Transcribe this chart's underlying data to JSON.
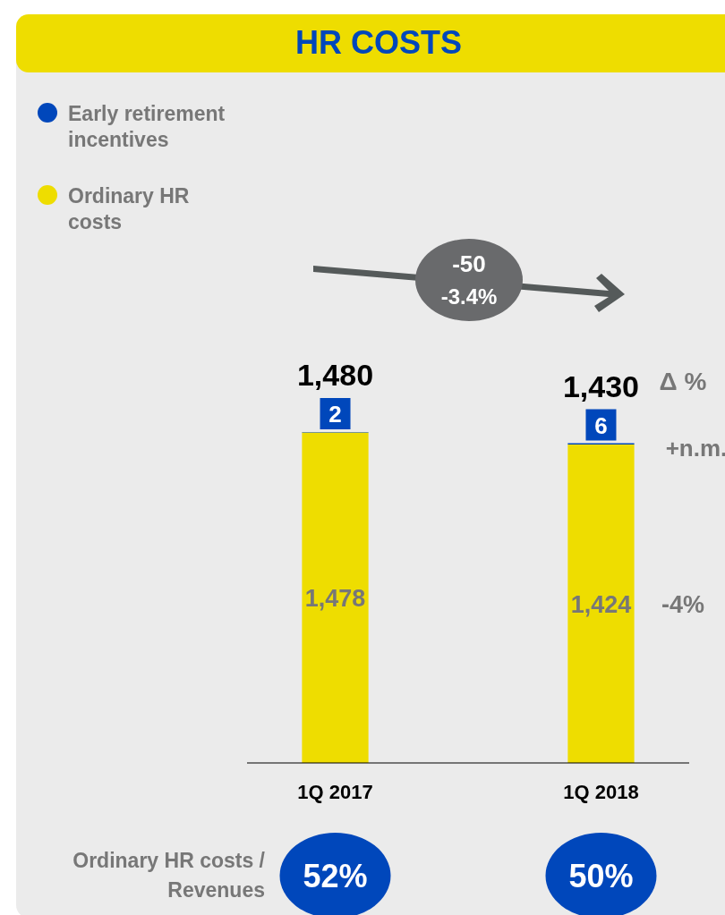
{
  "chart_data": {
    "type": "bar",
    "title": "HR COSTS",
    "stacked": true,
    "categories": [
      "1Q 2017",
      "1Q 2018"
    ],
    "tick_labels": "x",
    "legend": "top left",
    "totals": [
      "1,480",
      "1,430"
    ],
    "series": [
      {
        "name": "Ordinary HR costs",
        "color": "#eedd00",
        "values": [
          1478,
          1424
        ],
        "value_labels": [
          "1,478",
          "1,424"
        ]
      },
      {
        "name": "Early retirement incentives",
        "color": "#0047bb",
        "values": [
          2,
          6
        ],
        "value_labels": [
          "2",
          "6"
        ]
      }
    ],
    "annotations": [
      "-50",
      "-3.4%",
      "Δ %",
      "+n.m.",
      "-4%",
      "Ordinary HR costs / Revenues",
      "52%",
      "50%"
    ]
  }
}
